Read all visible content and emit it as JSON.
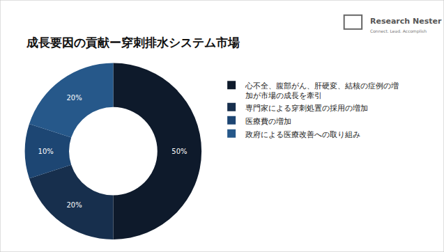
{
  "chart_data": {
    "type": "pie",
    "title": "成長要因の貢献ー穿刺排水システム市場",
    "categories": [
      "心不全、腹部がん、肝硬変、結核の症例の増加が市場の成長を牽引",
      "専門家による穿刺処置の採用の増加",
      "医療費の増加",
      "政府による医療改善への取り組み"
    ],
    "values": [
      50,
      20,
      10,
      20
    ],
    "value_labels": [
      "50%",
      "20%",
      "10%",
      "20%"
    ],
    "colors": [
      "#0e1a2b",
      "#172f4d",
      "#1d4673",
      "#26588a"
    ],
    "data_labels": true,
    "legend": "right",
    "annotations": [
      "Research Nester",
      "Connect. Lead. Accomplish"
    ]
  }
}
